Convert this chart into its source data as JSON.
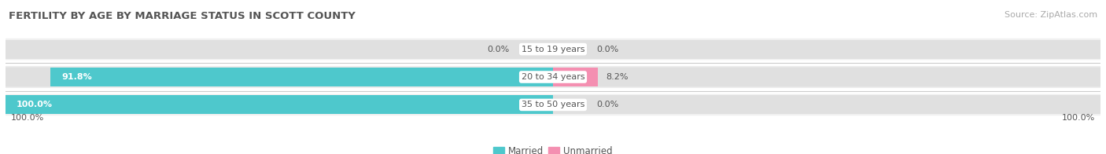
{
  "title": "FERTILITY BY AGE BY MARRIAGE STATUS IN SCOTT COUNTY",
  "source": "Source: ZipAtlas.com",
  "categories": [
    "15 to 19 years",
    "20 to 34 years",
    "35 to 50 years"
  ],
  "married_values": [
    0.0,
    91.8,
    100.0
  ],
  "unmarried_values": [
    0.0,
    8.2,
    0.0
  ],
  "married_color": "#4ec8cc",
  "unmarried_color": "#f48fb1",
  "bar_bg_color": "#e0e0e0",
  "bar_row_bg": "#efefef",
  "bar_height": 0.68,
  "title_fontsize": 9.5,
  "source_fontsize": 8,
  "label_fontsize": 8,
  "category_fontsize": 8,
  "legend_fontsize": 8.5,
  "bg_color": "#ffffff",
  "bottom_left_label": "100.0%",
  "bottom_right_label": "100.0%",
  "married_legend": "Married",
  "unmarried_legend": "Unmarried",
  "center_label_bg": "#ffffff",
  "row_separator_color": "#cccccc"
}
